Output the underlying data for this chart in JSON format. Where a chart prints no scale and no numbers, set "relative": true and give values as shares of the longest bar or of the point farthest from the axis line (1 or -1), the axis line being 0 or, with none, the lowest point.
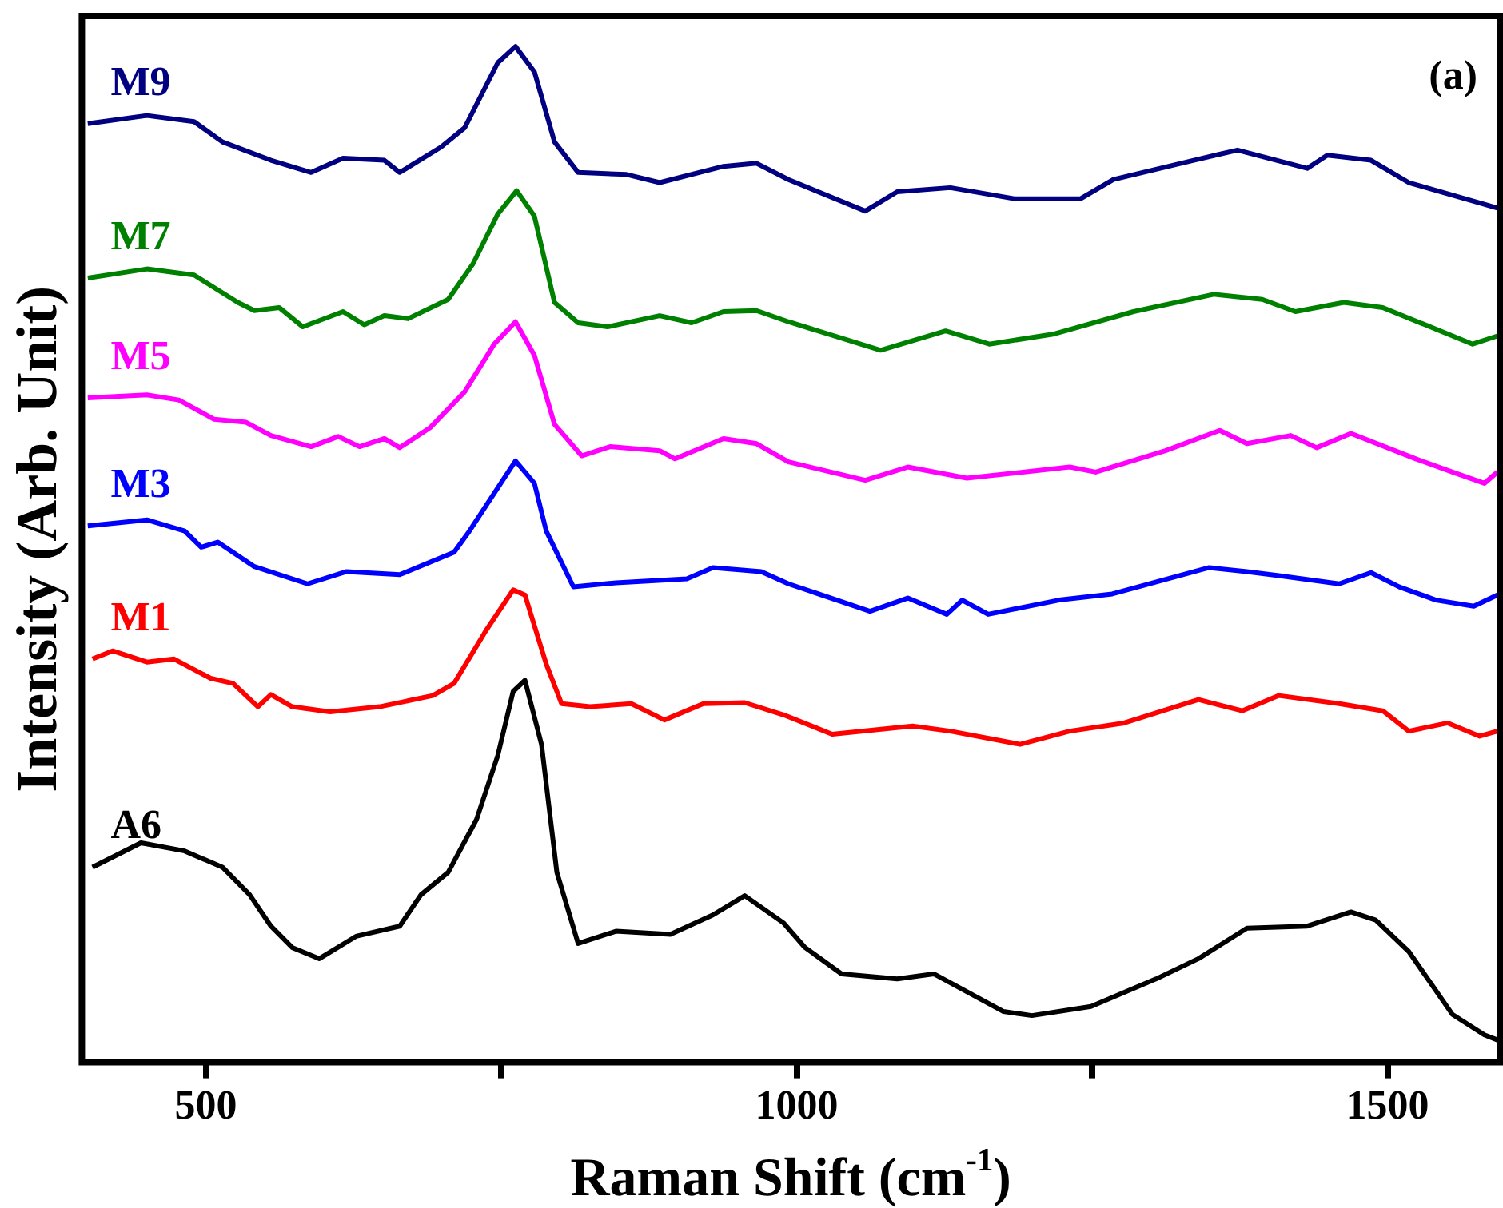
{
  "chart_data": {
    "type": "line",
    "xlabel": "Raman Shift (cm$^{-1}$)",
    "ylabel": "Intensity (Arb. Unit)",
    "annotations": [
      "(a)"
    ],
    "relative": true,
    "xlim": [
      395,
      1595
    ],
    "xticks": [
      500,
      {
        "value": 750,
        "label": null
      },
      1000,
      {
        "value": 1250,
        "label": null
      },
      1500
    ],
    "legend": false,
    "marker": "none",
    "series": [
      {
        "name": "M9",
        "color": "#000080",
        "x": [
          400,
          450,
          490,
          514,
          555,
          589,
          616,
          651,
          664,
          699,
          719,
          747,
          762,
          778,
          795,
          815,
          856,
          884,
          938,
          966,
          993,
          1058,
          1085,
          1130,
          1185,
          1240,
          1268,
          1336,
          1373,
          1432,
          1449,
          1486,
          1518,
          1593
        ],
        "values": [
          0.924,
          0.932,
          0.926,
          0.906,
          0.888,
          0.876,
          0.89,
          0.888,
          0.876,
          0.901,
          0.92,
          0.984,
          1.0,
          0.975,
          0.906,
          0.876,
          0.874,
          0.866,
          0.882,
          0.885,
          0.869,
          0.838,
          0.857,
          0.861,
          0.85,
          0.85,
          0.869,
          0.888,
          0.898,
          0.88,
          0.893,
          0.888,
          0.866,
          0.841
        ]
      },
      {
        "name": "M7",
        "color": "#008000",
        "x": [
          400,
          450,
          490,
          527,
          541,
          562,
          582,
          616,
          634,
          651,
          671,
          705,
          726,
          747,
          763,
          778,
          795,
          815,
          840,
          884,
          911,
          938,
          966,
          993,
          1071,
          1126,
          1163,
          1218,
          1285,
          1353,
          1394,
          1422,
          1463,
          1496,
          1572,
          1593
        ],
        "values": [
          0.772,
          0.781,
          0.775,
          0.748,
          0.74,
          0.743,
          0.724,
          0.739,
          0.726,
          0.735,
          0.732,
          0.751,
          0.786,
          0.835,
          0.858,
          0.833,
          0.748,
          0.728,
          0.724,
          0.735,
          0.728,
          0.739,
          0.74,
          0.729,
          0.701,
          0.72,
          0.707,
          0.717,
          0.739,
          0.756,
          0.751,
          0.739,
          0.748,
          0.743,
          0.707,
          0.715
        ]
      },
      {
        "name": "M5",
        "color": "#ff00ff",
        "x": [
          400,
          450,
          477,
          507,
          534,
          555,
          589,
          612,
          630,
          651,
          664,
          690,
          719,
          744,
          762,
          778,
          795,
          818,
          842,
          884,
          897,
          938,
          966,
          993,
          1058,
          1094,
          1144,
          1231,
          1253,
          1312,
          1358,
          1381,
          1418,
          1440,
          1469,
          1524,
          1555,
          1582,
          1593
        ],
        "values": [
          0.654,
          0.657,
          0.652,
          0.633,
          0.63,
          0.617,
          0.606,
          0.616,
          0.606,
          0.614,
          0.605,
          0.625,
          0.66,
          0.707,
          0.729,
          0.696,
          0.628,
          0.597,
          0.606,
          0.602,
          0.594,
          0.614,
          0.609,
          0.591,
          0.573,
          0.586,
          0.575,
          0.586,
          0.581,
          0.602,
          0.622,
          0.609,
          0.617,
          0.605,
          0.619,
          0.594,
          0.581,
          0.57,
          0.581
        ]
      },
      {
        "name": "M3",
        "color": "#0000ff",
        "x": [
          400,
          450,
          482,
          496,
          510,
          541,
          586,
          619,
          664,
          710,
          723,
          762,
          778,
          788,
          811,
          847,
          907,
          929,
          970,
          993,
          1062,
          1094,
          1127,
          1140,
          1162,
          1222,
          1267,
          1349,
          1381,
          1408,
          1459,
          1486,
          1510,
          1541,
          1573,
          1593
        ],
        "values": [
          0.528,
          0.534,
          0.523,
          0.507,
          0.512,
          0.488,
          0.471,
          0.483,
          0.48,
          0.502,
          0.523,
          0.592,
          0.57,
          0.523,
          0.468,
          0.472,
          0.476,
          0.487,
          0.483,
          0.471,
          0.444,
          0.457,
          0.441,
          0.455,
          0.441,
          0.455,
          0.461,
          0.487,
          0.483,
          0.479,
          0.471,
          0.482,
          0.468,
          0.455,
          0.449,
          0.46
        ]
      },
      {
        "name": "M1",
        "color": "#ff0000",
        "x": [
          404,
          421,
          450,
          473,
          504,
          523,
          544,
          555,
          573,
          605,
          647,
          692,
          710,
          737,
          760,
          770,
          788,
          801,
          825,
          860,
          888,
          921,
          956,
          989,
          1030,
          1098,
          1130,
          1189,
          1231,
          1277,
          1340,
          1377,
          1408,
          1459,
          1496,
          1518,
          1551,
          1578,
          1593
        ],
        "values": [
          0.397,
          0.405,
          0.394,
          0.397,
          0.378,
          0.373,
          0.35,
          0.362,
          0.35,
          0.345,
          0.35,
          0.361,
          0.373,
          0.425,
          0.465,
          0.46,
          0.392,
          0.353,
          0.35,
          0.353,
          0.337,
          0.353,
          0.354,
          0.342,
          0.323,
          0.331,
          0.326,
          0.313,
          0.326,
          0.334,
          0.357,
          0.346,
          0.361,
          0.353,
          0.346,
          0.326,
          0.334,
          0.321,
          0.326
        ]
      },
      {
        "name": "A6",
        "color": "#000000",
        "x": [
          404,
          445,
          482,
          514,
          537,
          555,
          573,
          596,
          627,
          664,
          682,
          705,
          729,
          747,
          760,
          770,
          784,
          797,
          815,
          847,
          893,
          929,
          956,
          989,
          1007,
          1038,
          1085,
          1116,
          1175,
          1199,
          1249,
          1304,
          1340,
          1381,
          1432,
          1469,
          1490,
          1518,
          1555,
          1582,
          1593
        ],
        "values": [
          0.192,
          0.216,
          0.208,
          0.192,
          0.165,
          0.134,
          0.113,
          0.102,
          0.124,
          0.134,
          0.165,
          0.187,
          0.239,
          0.302,
          0.365,
          0.376,
          0.313,
          0.187,
          0.117,
          0.129,
          0.126,
          0.145,
          0.164,
          0.137,
          0.113,
          0.087,
          0.082,
          0.087,
          0.05,
          0.046,
          0.055,
          0.082,
          0.102,
          0.132,
          0.134,
          0.148,
          0.14,
          0.109,
          0.047,
          0.027,
          0.022
        ]
      }
    ]
  }
}
